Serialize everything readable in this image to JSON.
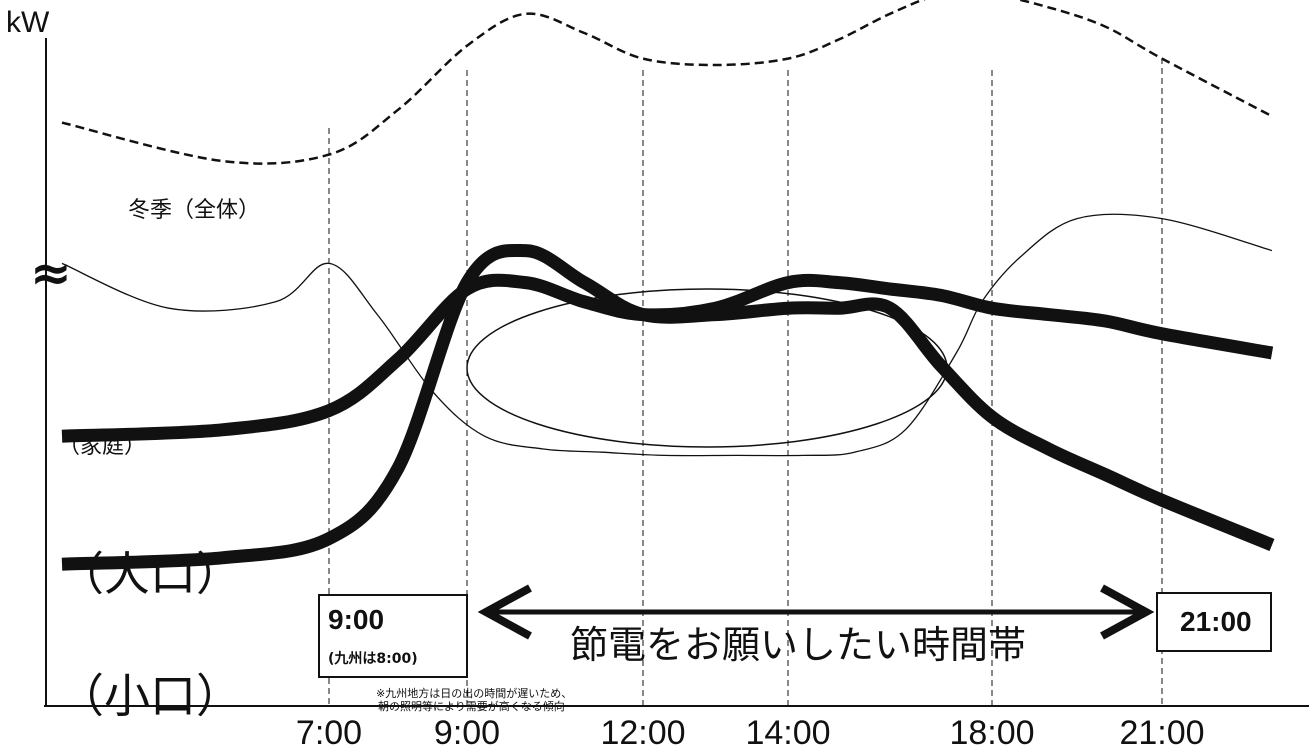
{
  "chart_data": {
    "type": "line",
    "ylabel": "kW",
    "x_tick_labels": [
      "7:00",
      "9:00",
      "12:00",
      "14:00",
      "18:00",
      "21:00"
    ],
    "x_tick_hours": [
      7,
      9,
      12,
      14,
      18,
      21
    ],
    "series": [
      {
        "name": "冬季（全体）",
        "style": "dashed",
        "x": [
          4.5,
          6,
          7,
          8,
          9,
          10,
          11,
          12,
          13,
          14,
          15,
          16,
          17,
          18,
          19,
          20,
          21,
          22.5
        ],
        "y": [
          91,
          85,
          86,
          93,
          103,
          108,
          105,
          101,
          100,
          101,
          104,
          108,
          111,
          111,
          109,
          106,
          101,
          92
        ]
      },
      {
        "name": "（家庭）",
        "style": "thin",
        "x": [
          4.5,
          5.5,
          6.5,
          7,
          7.7,
          8.5,
          9.3,
          10.3,
          11.3,
          12.3,
          13.3,
          14.3,
          15.3,
          16.3,
          17.3,
          17.8,
          18.5,
          19.5,
          21,
          22.5
        ],
        "y": [
          69,
          62,
          63,
          69,
          61,
          49,
          42,
          40,
          39.5,
          39,
          39,
          39,
          39.5,
          43,
          55,
          63,
          70,
          76,
          76,
          71
        ]
      },
      {
        "name": "（大口）",
        "style": "thick",
        "x": [
          4.5,
          6,
          7,
          8,
          9,
          10,
          11,
          12,
          13,
          14,
          15,
          16,
          17,
          18,
          19,
          20,
          21,
          22.5
        ],
        "y": [
          42,
          43,
          46,
          54,
          65,
          66,
          63,
          61,
          62,
          66,
          66,
          65,
          64,
          62,
          61,
          60,
          58,
          55
        ]
      },
      {
        "name": "（小口）",
        "style": "thick",
        "x": [
          4.5,
          6,
          7,
          8,
          9,
          10,
          11,
          12,
          13,
          14,
          15,
          16,
          17,
          18,
          19,
          20,
          21,
          22.5
        ],
        "y": [
          22,
          23,
          26,
          37,
          66,
          71,
          66,
          61,
          61,
          62,
          62,
          62,
          53,
          45,
          40,
          36,
          32,
          25
        ]
      }
    ]
  },
  "labels": {
    "winter_total": "冬季（全体）",
    "household": "（家庭）",
    "large_lot": "（大口）",
    "small_lot": "（小口）"
  },
  "box_start": {
    "time": "9:00",
    "sub": "(九州は8:00)"
  },
  "box_end": {
    "time": "21:00"
  },
  "arrow_label": "節電をお願いしたい時間帯",
  "note_line1": "※九州地方は日の出の時間が遅いため、",
  "note_line2": "朝の照明等により需要が高くなる傾向",
  "axis_break": "≈",
  "colors": {
    "ink": "#111111",
    "background": "#ffffff"
  }
}
